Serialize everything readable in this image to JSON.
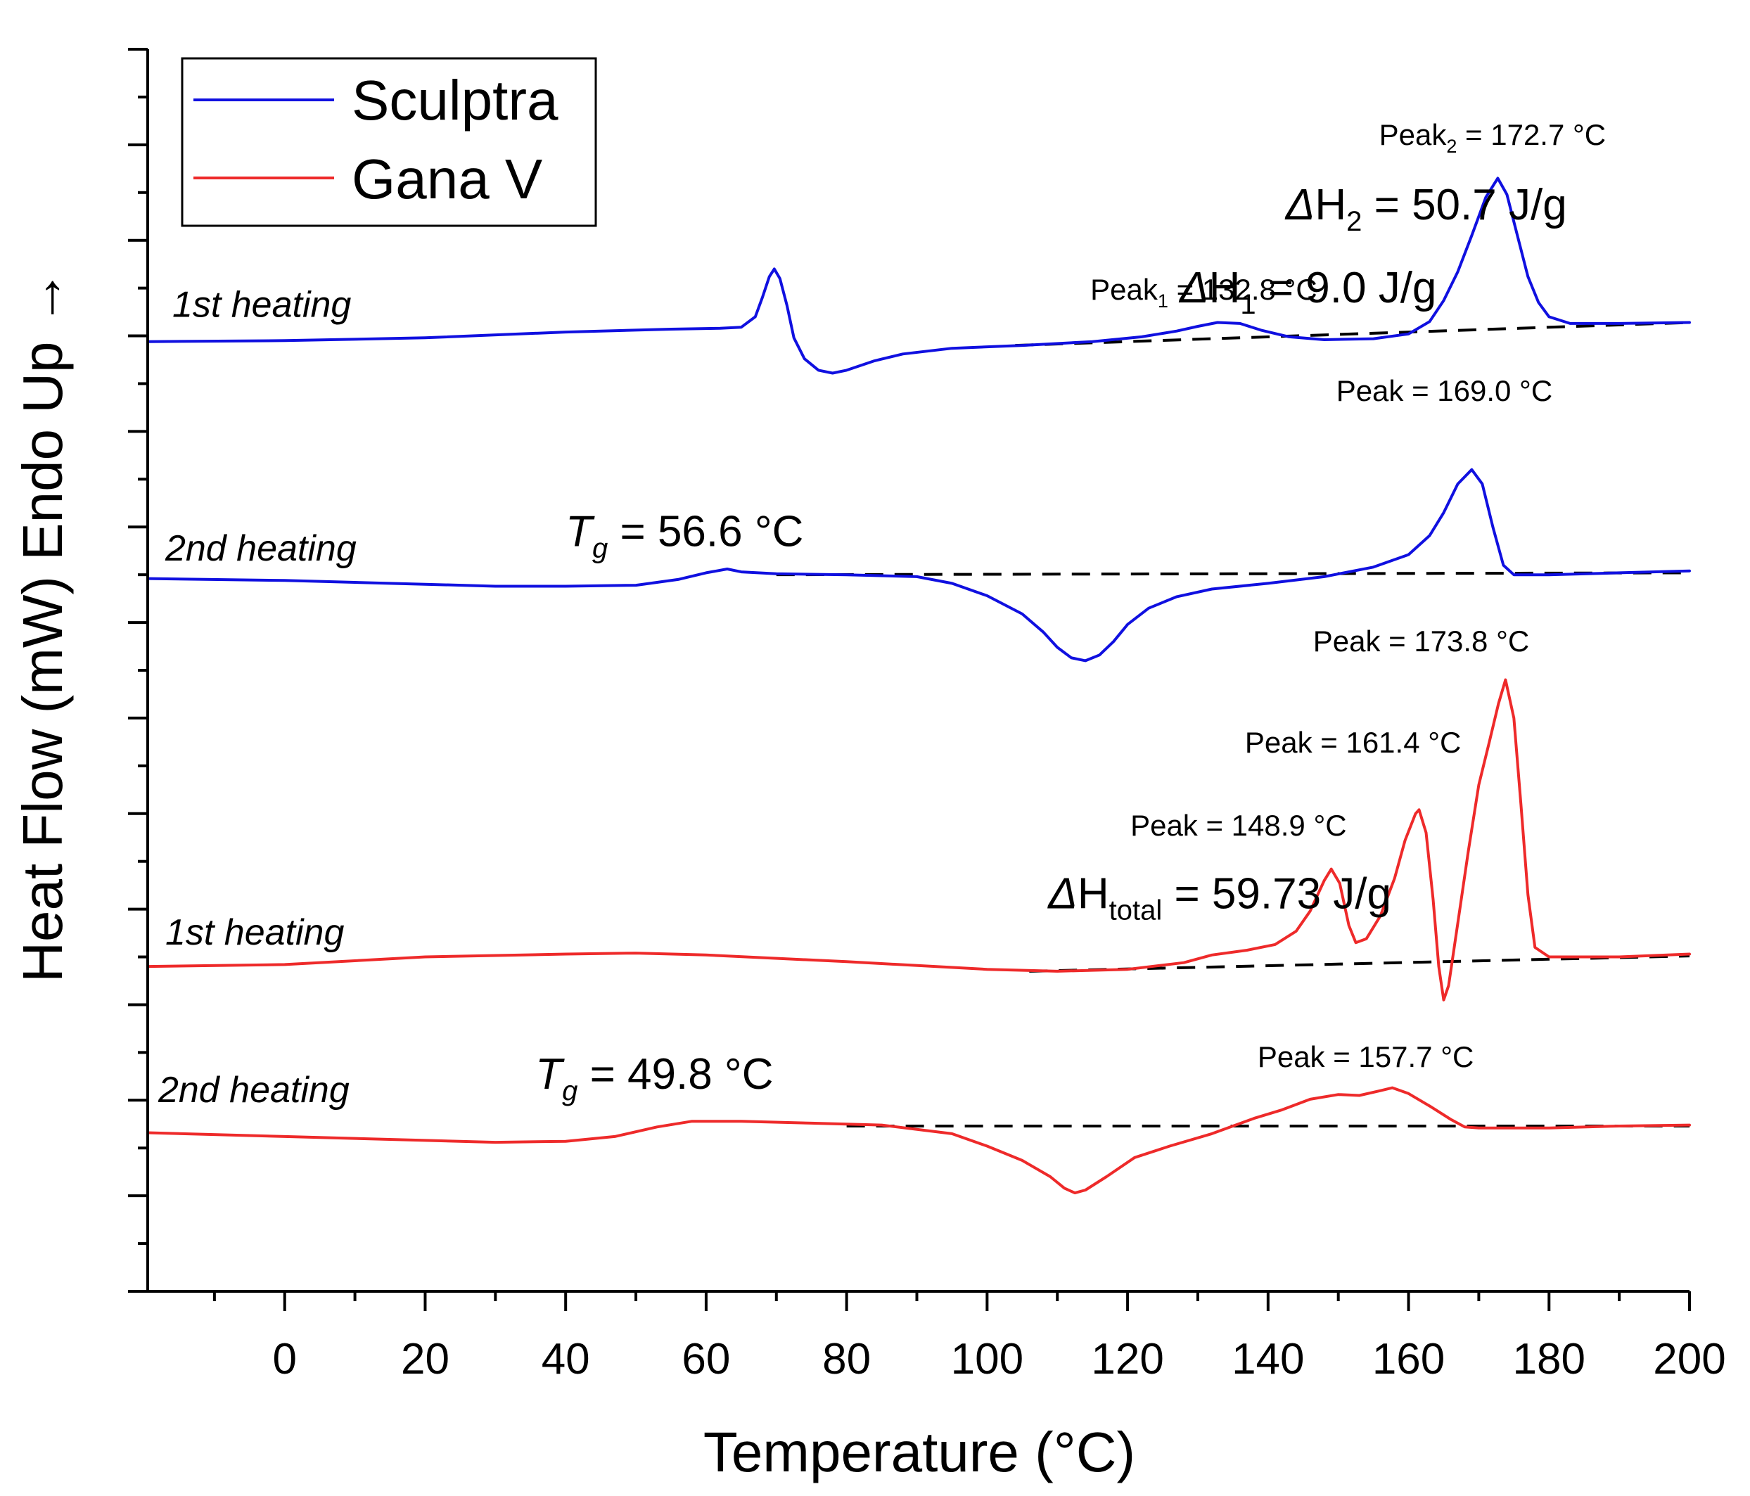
{
  "chart_data": {
    "type": "line",
    "title": "",
    "xlabel": "Temperature (°C)",
    "ylabel": "Heat Flow (mW) Endo Up",
    "ylabel_arrow": "→",
    "xlim": [
      -19.5,
      200
    ],
    "ylim": [
      0,
      13
    ],
    "x_ticks": [
      0,
      20,
      40,
      60,
      80,
      100,
      120,
      140,
      160,
      180,
      200
    ],
    "legend": {
      "position": "top-left",
      "entries": [
        {
          "name": "Sculptra",
          "color": "#1010e0"
        },
        {
          "name": "Gana V",
          "color": "#ee2a2a"
        }
      ]
    },
    "colors": {
      "sculptra": "#1010e0",
      "gana": "#ee2a2a",
      "baseline": "#000000"
    },
    "series": [
      {
        "name": "Sculptra",
        "label": "1st heating",
        "color": "#1010e0",
        "points": [
          [
            -19.5,
            9.94
          ],
          [
            0,
            9.95
          ],
          [
            20,
            9.98
          ],
          [
            40,
            10.04
          ],
          [
            55,
            10.07
          ],
          [
            62,
            10.08
          ],
          [
            65,
            10.09
          ],
          [
            67,
            10.2
          ],
          [
            68,
            10.4
          ],
          [
            69,
            10.62
          ],
          [
            69.7,
            10.7
          ],
          [
            70.5,
            10.6
          ],
          [
            71.5,
            10.32
          ],
          [
            72.5,
            9.98
          ],
          [
            74,
            9.76
          ],
          [
            76,
            9.64
          ],
          [
            78,
            9.61
          ],
          [
            80,
            9.64
          ],
          [
            84,
            9.74
          ],
          [
            88,
            9.81
          ],
          [
            95,
            9.87
          ],
          [
            105,
            9.9
          ],
          [
            115,
            9.94
          ],
          [
            122,
            9.99
          ],
          [
            127,
            10.05
          ],
          [
            130,
            10.1
          ],
          [
            132.8,
            10.14
          ],
          [
            136,
            10.13
          ],
          [
            139,
            10.06
          ],
          [
            143,
            9.99
          ],
          [
            148,
            9.96
          ],
          [
            155,
            9.97
          ],
          [
            160,
            10.02
          ],
          [
            163,
            10.15
          ],
          [
            165,
            10.37
          ],
          [
            167,
            10.67
          ],
          [
            169,
            11.05
          ],
          [
            171,
            11.45
          ],
          [
            172.7,
            11.65
          ],
          [
            174,
            11.48
          ],
          [
            175.5,
            11.05
          ],
          [
            177,
            10.62
          ],
          [
            178.5,
            10.35
          ],
          [
            180,
            10.2
          ],
          [
            183,
            10.13
          ],
          [
            190,
            10.13
          ],
          [
            200,
            10.14
          ]
        ]
      },
      {
        "name": "Sculptra",
        "label": "2nd heating",
        "color": "#1010e0",
        "points": [
          [
            -19.5,
            7.46
          ],
          [
            0,
            7.44
          ],
          [
            20,
            7.4
          ],
          [
            30,
            7.38
          ],
          [
            40,
            7.38
          ],
          [
            50,
            7.39
          ],
          [
            56,
            7.45
          ],
          [
            60,
            7.52
          ],
          [
            63,
            7.56
          ],
          [
            65,
            7.53
          ],
          [
            70,
            7.51
          ],
          [
            80,
            7.5
          ],
          [
            90,
            7.48
          ],
          [
            95,
            7.41
          ],
          [
            100,
            7.28
          ],
          [
            105,
            7.09
          ],
          [
            108,
            6.9
          ],
          [
            110,
            6.74
          ],
          [
            112,
            6.63
          ],
          [
            114,
            6.6
          ],
          [
            116,
            6.66
          ],
          [
            118,
            6.8
          ],
          [
            120,
            6.98
          ],
          [
            123,
            7.15
          ],
          [
            127,
            7.27
          ],
          [
            132,
            7.35
          ],
          [
            140,
            7.41
          ],
          [
            148,
            7.48
          ],
          [
            155,
            7.58
          ],
          [
            160,
            7.71
          ],
          [
            163,
            7.91
          ],
          [
            165,
            8.15
          ],
          [
            167,
            8.45
          ],
          [
            169,
            8.6
          ],
          [
            170.5,
            8.45
          ],
          [
            172,
            8.0
          ],
          [
            173.5,
            7.6
          ],
          [
            175,
            7.5
          ],
          [
            180,
            7.5
          ],
          [
            190,
            7.52
          ],
          [
            200,
            7.54
          ]
        ]
      },
      {
        "name": "Gana V",
        "label": "1st heating",
        "color": "#ee2a2a",
        "points": [
          [
            -19.5,
            3.4
          ],
          [
            0,
            3.42
          ],
          [
            20,
            3.5
          ],
          [
            40,
            3.53
          ],
          [
            50,
            3.54
          ],
          [
            60,
            3.52
          ],
          [
            80,
            3.45
          ],
          [
            100,
            3.37
          ],
          [
            110,
            3.35
          ],
          [
            120,
            3.37
          ],
          [
            128,
            3.44
          ],
          [
            132,
            3.52
          ],
          [
            137,
            3.57
          ],
          [
            141,
            3.63
          ],
          [
            144,
            3.77
          ],
          [
            146,
            3.98
          ],
          [
            148,
            4.3
          ],
          [
            149,
            4.42
          ],
          [
            150.2,
            4.27
          ],
          [
            151.5,
            3.83
          ],
          [
            152.5,
            3.65
          ],
          [
            154,
            3.69
          ],
          [
            156,
            3.93
          ],
          [
            158,
            4.32
          ],
          [
            159.5,
            4.72
          ],
          [
            161,
            5.0
          ],
          [
            161.5,
            5.04
          ],
          [
            162.5,
            4.8
          ],
          [
            163.5,
            4.1
          ],
          [
            164.3,
            3.4
          ],
          [
            165,
            3.05
          ],
          [
            165.7,
            3.2
          ],
          [
            167,
            3.85
          ],
          [
            168.5,
            4.6
          ],
          [
            170,
            5.3
          ],
          [
            171.5,
            5.75
          ],
          [
            172.8,
            6.15
          ],
          [
            173.8,
            6.4
          ],
          [
            175,
            6.0
          ],
          [
            176,
            5.1
          ],
          [
            177,
            4.15
          ],
          [
            178,
            3.6
          ],
          [
            180,
            3.5
          ],
          [
            190,
            3.5
          ],
          [
            200,
            3.53
          ]
        ]
      },
      {
        "name": "Gana V",
        "label": "2nd heating",
        "color": "#ee2a2a",
        "points": [
          [
            -19.5,
            1.66
          ],
          [
            0,
            1.62
          ],
          [
            20,
            1.58
          ],
          [
            30,
            1.56
          ],
          [
            40,
            1.57
          ],
          [
            47,
            1.62
          ],
          [
            53,
            1.72
          ],
          [
            58,
            1.78
          ],
          [
            65,
            1.78
          ],
          [
            75,
            1.76
          ],
          [
            85,
            1.74
          ],
          [
            95,
            1.65
          ],
          [
            100,
            1.52
          ],
          [
            105,
            1.37
          ],
          [
            109,
            1.2
          ],
          [
            111,
            1.08
          ],
          [
            112.5,
            1.03
          ],
          [
            114,
            1.06
          ],
          [
            117,
            1.2
          ],
          [
            121,
            1.4
          ],
          [
            126,
            1.52
          ],
          [
            132,
            1.65
          ],
          [
            138,
            1.81
          ],
          [
            142,
            1.9
          ],
          [
            146,
            2.01
          ],
          [
            150,
            2.06
          ],
          [
            153,
            2.05
          ],
          [
            156,
            2.1
          ],
          [
            157.7,
            2.13
          ],
          [
            160,
            2.07
          ],
          [
            163,
            1.94
          ],
          [
            166,
            1.8
          ],
          [
            168,
            1.72
          ],
          [
            170,
            1.71
          ],
          [
            180,
            1.71
          ],
          [
            190,
            1.73
          ],
          [
            200,
            1.74
          ]
        ]
      }
    ],
    "baselines": [
      {
        "from": [
          104,
          9.9
        ],
        "to": [
          200,
          10.14
        ]
      },
      {
        "from": [
          70,
          7.5
        ],
        "to": [
          200,
          7.52
        ]
      },
      {
        "from": [
          106,
          3.35
        ],
        "to": [
          200,
          3.51
        ]
      },
      {
        "from": [
          80,
          1.73
        ],
        "to": [
          200,
          1.73
        ]
      }
    ],
    "curve_labels": [
      {
        "text": "1st heating",
        "color": "#1010e0",
        "at": [
          -16,
          10.2
        ]
      },
      {
        "text": "2nd heating",
        "color": "#1010e0",
        "at": [
          -17,
          7.65
        ]
      },
      {
        "text": "1st heating",
        "color": "#ee2a2a",
        "at": [
          -17,
          3.63
        ]
      },
      {
        "text": "2nd heating",
        "color": "#ee2a2a",
        "at": [
          -18,
          1.98
        ]
      }
    ],
    "annotations": [
      {
        "kind": "sub",
        "prefix": "Peak",
        "sub": "2",
        "suffix": " = 172.7 °C",
        "at": [
          155.8,
          12.0
        ],
        "size": "small"
      },
      {
        "kind": "delta",
        "prefix": "H",
        "sub": "2",
        "suffix": " = 50.7 J/g",
        "at": [
          142.5,
          11.22
        ],
        "size": "large"
      },
      {
        "kind": "delta",
        "prefix": "H",
        "sub": "1",
        "suffix": " = 9.0 J/g",
        "at": [
          127.4,
          10.35
        ],
        "size": "large"
      },
      {
        "kind": "sub",
        "prefix": "Peak",
        "sub": "1",
        "suffix": " = 132.8 °C",
        "at": [
          114.7,
          10.38
        ],
        "size": "small"
      },
      {
        "kind": "plain",
        "text": "Peak = 169.0 °C",
        "at": [
          149.7,
          9.32
        ],
        "size": "small"
      },
      {
        "kind": "tg",
        "suffix": " = 56.6 °C",
        "at": [
          40.0,
          7.8
        ],
        "size": "large"
      },
      {
        "kind": "plain",
        "text": "Peak = 173.8 °C",
        "at": [
          146.4,
          6.7
        ],
        "size": "small"
      },
      {
        "kind": "plain",
        "text": "Peak = 161.4 °C",
        "at": [
          136.7,
          5.64
        ],
        "size": "small"
      },
      {
        "kind": "plain",
        "text": "Peak = 148.9 °C",
        "at": [
          120.4,
          4.77
        ],
        "size": "small"
      },
      {
        "kind": "delta",
        "prefix": "H",
        "sub": "total",
        "suffix": " = 59.73 J/g",
        "at": [
          108.7,
          4.01
        ],
        "size": "large"
      },
      {
        "kind": "tg",
        "suffix": " = 49.8 °C",
        "at": [
          35.7,
          2.12
        ],
        "size": "large"
      },
      {
        "kind": "plain",
        "text": "Peak = 157.7 °C",
        "at": [
          138.5,
          2.35
        ],
        "size": "small"
      }
    ]
  }
}
